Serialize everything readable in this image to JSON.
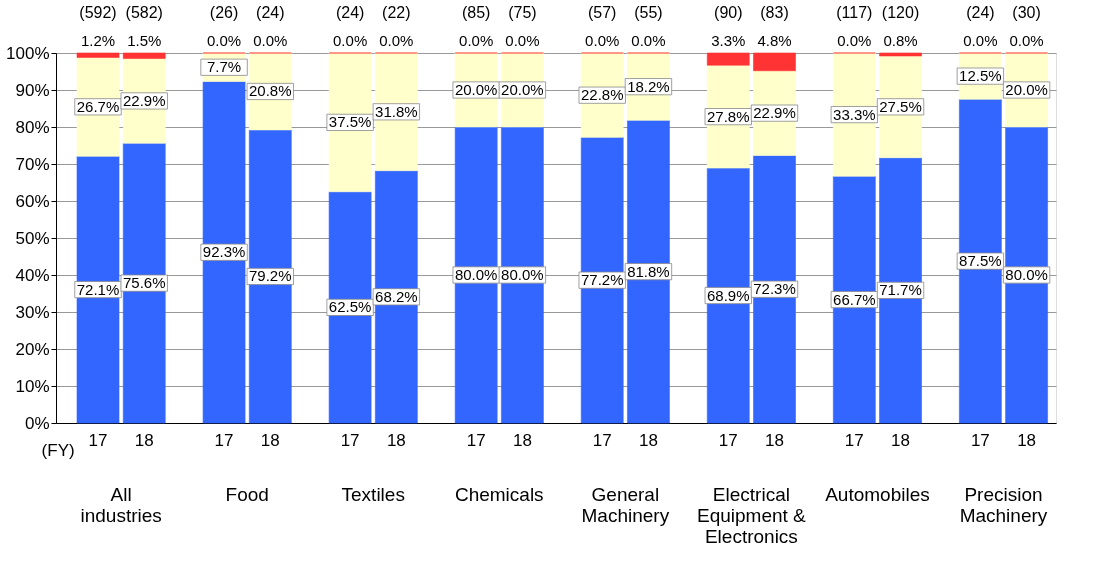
{
  "chart_data": {
    "type": "bar",
    "stacked": true,
    "categories": [
      "17",
      "18",
      "17",
      "18",
      "17",
      "18",
      "17",
      "18",
      "17",
      "18",
      "17",
      "18",
      "17",
      "18",
      "17",
      "18"
    ],
    "series": [
      {
        "color": "#3366ff",
        "values": [
          72.1,
          75.6,
          92.3,
          79.2,
          62.5,
          68.2,
          80.0,
          80.0,
          77.2,
          81.8,
          68.9,
          72.3,
          66.7,
          71.7,
          87.5,
          80.0
        ],
        "value_labels": [
          "72.1%",
          "75.6%",
          "92.3%",
          "79.2%",
          "62.5%",
          "68.2%",
          "80.0%",
          "80.0%",
          "77.2%",
          "81.8%",
          "68.9%",
          "72.3%",
          "66.7%",
          "71.7%",
          "87.5%",
          "80.0%"
        ]
      },
      {
        "color": "#ffffcc",
        "values": [
          26.7,
          22.9,
          7.7,
          20.8,
          37.5,
          31.8,
          20.0,
          20.0,
          22.8,
          18.2,
          27.8,
          22.9,
          33.3,
          27.5,
          12.5,
          20.0
        ],
        "value_labels": [
          "26.7%",
          "22.9%",
          "7.7%",
          "20.8%",
          "37.5%",
          "31.8%",
          "20.0%",
          "20.0%",
          "22.8%",
          "18.2%",
          "27.8%",
          "22.9%",
          "33.3%",
          "27.5%",
          "12.5%",
          "20.0%"
        ]
      },
      {
        "color": "#ff3333",
        "values": [
          1.2,
          1.5,
          0.0,
          0.0,
          0.0,
          0.0,
          0.0,
          0.0,
          0.0,
          0.0,
          3.3,
          4.8,
          0.0,
          0.8,
          0.0,
          0.0
        ],
        "value_labels": [
          "1.2%",
          "1.5%",
          "0.0%",
          "0.0%",
          "0.0%",
          "0.0%",
          "0.0%",
          "0.0%",
          "0.0%",
          "0.0%",
          "3.3%",
          "4.8%",
          "0.0%",
          "0.8%",
          "0.0%",
          "0.0%"
        ]
      }
    ],
    "ylim": [
      0,
      100
    ],
    "yticks": [
      {
        "value": 0,
        "label": "0%"
      },
      {
        "value": 10,
        "label": "10%"
      },
      {
        "value": 20,
        "label": "20%"
      },
      {
        "value": 30,
        "label": "30%"
      },
      {
        "value": 40,
        "label": "40%"
      },
      {
        "value": 50,
        "label": "50%"
      },
      {
        "value": 60,
        "label": "60%"
      },
      {
        "value": 70,
        "label": "70%"
      },
      {
        "value": 80,
        "label": "80%"
      },
      {
        "value": 90,
        "label": "90%"
      },
      {
        "value": 100,
        "label": "100%"
      }
    ],
    "grid": "y",
    "annotations": [
      "(FY)",
      "(592)",
      "(582)",
      "(26)",
      "(24)",
      "(24)",
      "(22)",
      "(85)",
      "(75)",
      "(57)",
      "(55)",
      "(90)",
      "(83)",
      "(117)",
      "(120)",
      "(24)",
      "(30)",
      "All\nindustries",
      "Food",
      "Textiles",
      "Chemicals",
      "General\nMachinery",
      "Electrical\nEquipment &\nElectronics",
      "Automobiles",
      "Precision\nMachinery"
    ]
  }
}
